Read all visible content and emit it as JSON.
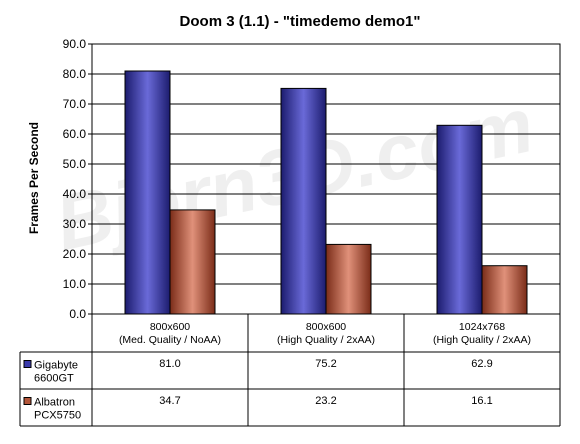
{
  "chart_data": {
    "type": "bar",
    "title": "Doom 3 (1.1) - \"timedemo demo1\"",
    "ylabel": "Frames Per Second",
    "ylim": [
      0,
      90
    ],
    "yticks": [
      "0.0",
      "10.0",
      "20.0",
      "30.0",
      "40.0",
      "50.0",
      "60.0",
      "70.0",
      "80.0",
      "90.0"
    ],
    "categories": [
      [
        "800x600",
        "(Med. Quality / NoAA)"
      ],
      [
        "800x600",
        "(High Quality / 2xAA)"
      ],
      [
        "1024x768",
        "(High Quality / 2xAA)"
      ]
    ],
    "series": [
      {
        "name": [
          "Gigabyte",
          "6600GT"
        ],
        "values": [
          81.0,
          75.2,
          62.9
        ],
        "labels": [
          "81.0",
          "75.2",
          "62.9"
        ],
        "color": "#3b3bab"
      },
      {
        "name": [
          "Albatron",
          "PCX5750"
        ],
        "values": [
          34.7,
          23.2,
          16.1
        ],
        "labels": [
          "34.7",
          "23.2",
          "16.1"
        ],
        "color": "#b3563a"
      }
    ],
    "grid": true,
    "legend": "data table below chart"
  },
  "watermark": "Bjorn3D.com"
}
